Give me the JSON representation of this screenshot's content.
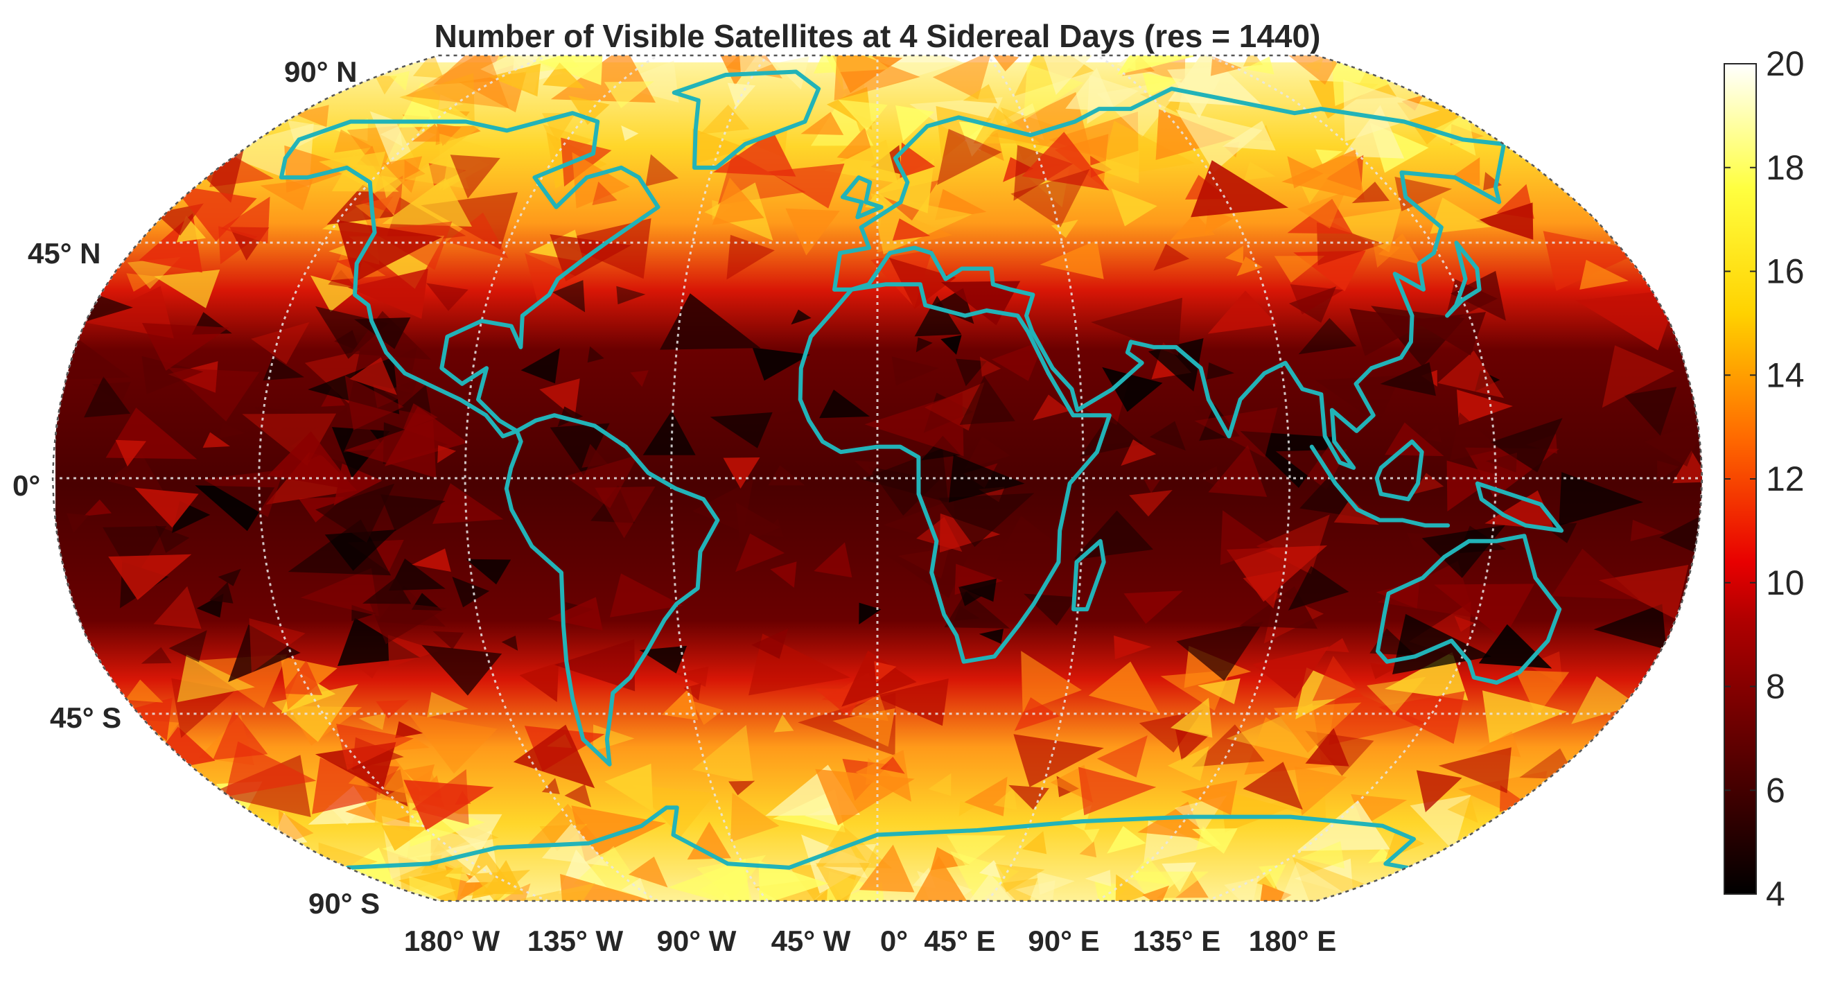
{
  "title": "Number of Visible Satellites at 4 Sidereal Days (res = 1440)",
  "latitude_labels": [
    "90° N",
    "45° N",
    "0°",
    "45° S",
    "90° S"
  ],
  "longitude_labels": [
    "180° W",
    "135° W",
    "90° W",
    "45° W",
    "0°",
    "45° E",
    "90° E",
    "135° E",
    "180° E"
  ],
  "colorbar": {
    "colormap": "hot",
    "min": 4,
    "max": 20,
    "ticks": [
      "20",
      "18",
      "16",
      "14",
      "12",
      "10",
      "8",
      "6",
      "4"
    ]
  },
  "map_data": {
    "projection": "Robinson",
    "variable": "number of visible satellites",
    "resolution": 1440,
    "bands": [
      {
        "lat_range": [
          60,
          90
        ],
        "typical_value": 17
      },
      {
        "lat_range": [
          35,
          60
        ],
        "typical_value": 11
      },
      {
        "lat_range": [
          -35,
          35
        ],
        "typical_value": 6
      },
      {
        "lat_range": [
          -60,
          -35
        ],
        "typical_value": 11
      },
      {
        "lat_range": [
          -90,
          -60
        ],
        "typical_value": 17
      }
    ],
    "coastline_color": "#22b3b8",
    "graticule_step_deg": 45
  }
}
